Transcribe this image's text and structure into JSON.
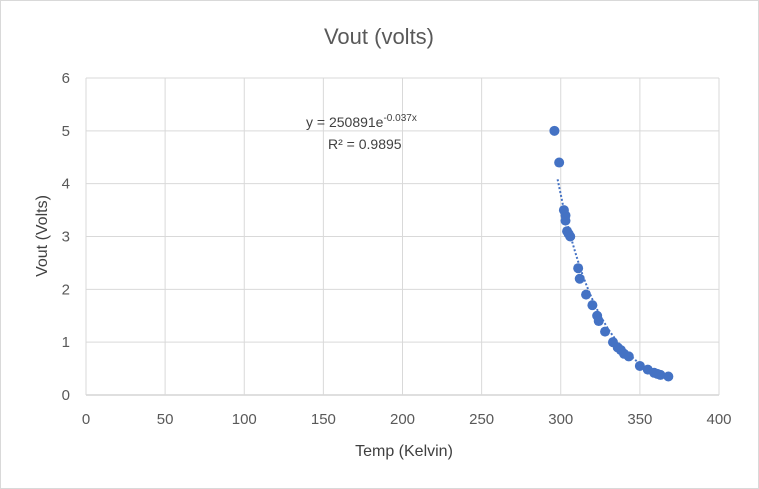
{
  "chart_data": {
    "type": "scatter",
    "title": "Vout (volts)",
    "xlabel": "Temp (Kelvin)",
    "ylabel": "Vout (Volts)",
    "xlim": [
      0,
      400
    ],
    "ylim": [
      0,
      6
    ],
    "xticks": [
      0,
      50,
      100,
      150,
      200,
      250,
      300,
      350,
      400
    ],
    "yticks": [
      0,
      1,
      2,
      3,
      4,
      5,
      6
    ],
    "grid": true,
    "legend": "none",
    "marker_color": "#4472c4",
    "trendline": {
      "type": "exponential",
      "a": 250891,
      "b": -0.037,
      "style": "dotted",
      "color": "#4472c4",
      "equation_prefix": "y = 250891e",
      "equation_exponent": "-0.037x",
      "r2_label": "R² = 0.9895"
    },
    "series": [
      {
        "x": [
          296,
          299,
          302,
          303,
          303,
          304,
          305,
          306,
          311,
          312,
          316,
          320,
          323,
          324,
          328,
          333,
          336,
          338,
          340,
          343,
          350,
          355,
          359,
          361,
          363,
          368
        ],
        "y": [
          5.0,
          4.4,
          3.5,
          3.4,
          3.3,
          3.1,
          3.05,
          3.0,
          2.4,
          2.2,
          1.9,
          1.7,
          1.5,
          1.4,
          1.2,
          1.0,
          0.9,
          0.85,
          0.78,
          0.73,
          0.55,
          0.48,
          0.42,
          0.4,
          0.38,
          0.35
        ]
      }
    ]
  }
}
